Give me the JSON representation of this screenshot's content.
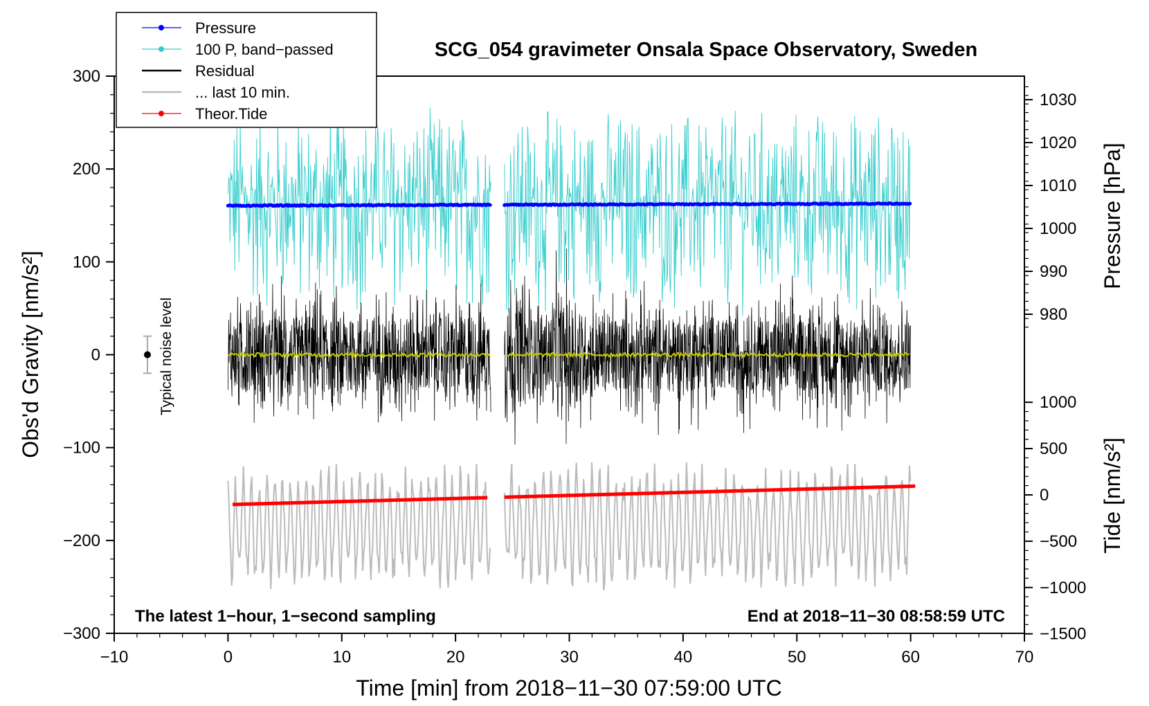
{
  "chart_data": {
    "type": "line",
    "title": "SCG_054 gravimeter Onsala Space Observatory, Sweden",
    "xlabel": "Time [min] from 2018−11−30 07:59:00 UTC",
    "ylabel_main": "Obs'd Gravity [nm/s²]",
    "ylabel_pressure": "Pressure [hPa]",
    "ylabel_tide": "Tide [nm/s²]",
    "xlim": [
      -10,
      70
    ],
    "ylim": [
      -300,
      300
    ],
    "x_ticks": [
      "−10",
      "0",
      "10",
      "20",
      "30",
      "40",
      "50",
      "60",
      "70"
    ],
    "x_tick_values": [
      -10,
      0,
      10,
      20,
      30,
      40,
      50,
      60,
      70
    ],
    "y_ticks": [
      "300",
      "200",
      "100",
      "0",
      "−100",
      "−200",
      "−300"
    ],
    "y_tick_values": [
      300,
      200,
      100,
      0,
      -100,
      -200,
      -300
    ],
    "pressure_ticks": [
      "1030",
      "1020",
      "1010",
      "1000",
      "990",
      "980"
    ],
    "pressure_tick_values": [
      1030,
      1020,
      1010,
      1000,
      990,
      980
    ],
    "tide_ticks": [
      "1000",
      "500",
      "0",
      "−500",
      "−1000",
      "−1500"
    ],
    "tide_tick_values": [
      1000,
      500,
      0,
      -500,
      -1000,
      -1500
    ],
    "legend": [
      "Pressure",
      "100 P, band−passed",
      "Residual",
      "... last 10 min.",
      "Theor.Tide"
    ],
    "legend_position": "top-left",
    "annotation_left": "The latest 1−hour, 1−second sampling",
    "annotation_right": "End at 2018−11−30 08:58:59 UTC",
    "noise_label": "Typical noise level",
    "noise_level": 20,
    "gap": [
      23.1,
      24.3
    ],
    "series": [
      {
        "name": "Pressure",
        "color": "#0000ff",
        "start": 1005.3,
        "end": 1005.8,
        "unit": "hPa"
      },
      {
        "name": "100 P, band−passed",
        "color": "#33cccc",
        "center": 165,
        "amplitude_range": [
          -140,
          125
        ],
        "unit": "nm/s²"
      },
      {
        "name": "Residual",
        "color": "#000000",
        "center": 0,
        "amplitude_range": [
          -105,
          100
        ],
        "unit": "nm/s²"
      },
      {
        "name": "... last 10 min.",
        "color": "#bbbbbb",
        "center": -185,
        "amplitude_range": [
          -70,
          75
        ],
        "unit": "nm/s²"
      },
      {
        "name": "Theor.Tide",
        "color": "#ff0000",
        "start": -105,
        "end": 95,
        "unit": "nm/s²"
      },
      {
        "name": "Mean",
        "color": "#cccc00",
        "center": 0
      }
    ]
  }
}
